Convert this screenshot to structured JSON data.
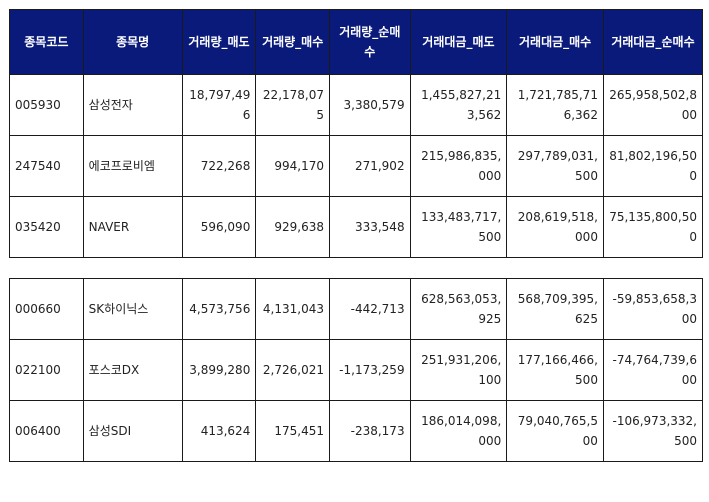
{
  "headers": [
    "종목코드",
    "종목명",
    "거래량_매도",
    "거래량_매수",
    "거래량_순매수",
    "거래대금_매도",
    "거래대금_매수",
    "거래대금_순매수"
  ],
  "top_rows": [
    {
      "code": "005930",
      "name": "삼성전자",
      "vol_sell": "18,797,496",
      "vol_buy": "22,178,075",
      "vol_net": "3,380,579",
      "amt_sell": "1,455,827,213,562",
      "amt_buy": "1,721,785,716,362",
      "amt_net": "265,958,502,800"
    },
    {
      "code": "247540",
      "name": "에코프로비엠",
      "vol_sell": "722,268",
      "vol_buy": "994,170",
      "vol_net": "271,902",
      "amt_sell": "215,986,835,000",
      "amt_buy": "297,789,031,500",
      "amt_net": "81,802,196,500"
    },
    {
      "code": "035420",
      "name": "NAVER",
      "vol_sell": "596,090",
      "vol_buy": "929,638",
      "vol_net": "333,548",
      "amt_sell": "133,483,717,500",
      "amt_buy": "208,619,518,000",
      "amt_net": "75,135,800,500"
    }
  ],
  "bottom_rows": [
    {
      "code": "000660",
      "name": "SK하이닉스",
      "vol_sell": "4,573,756",
      "vol_buy": "4,131,043",
      "vol_net": "-442,713",
      "amt_sell": "628,563,053,925",
      "amt_buy": "568,709,395,625",
      "amt_net": "-59,853,658,300"
    },
    {
      "code": "022100",
      "name": "포스코DX",
      "vol_sell": "3,899,280",
      "vol_buy": "2,726,021",
      "vol_net": "-1,173,259",
      "amt_sell": "251,931,206,100",
      "amt_buy": "177,166,466,500",
      "amt_net": "-74,764,739,600"
    },
    {
      "code": "006400",
      "name": "삼성SDI",
      "vol_sell": "413,624",
      "vol_buy": "175,451",
      "vol_net": "-238,173",
      "amt_sell": "186,014,098,000",
      "amt_buy": "79,040,765,500",
      "amt_net": "-106,973,332,500"
    }
  ]
}
